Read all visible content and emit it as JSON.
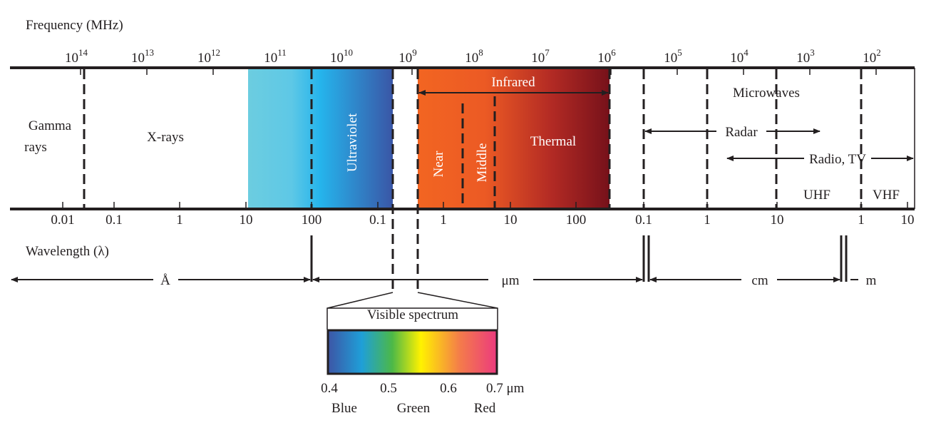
{
  "frequency_label": "Frequency (MHz)",
  "frequency_ticks": [
    {
      "base": "10",
      "exponent": "14"
    },
    {
      "base": "10",
      "exponent": "13"
    },
    {
      "base": "10",
      "exponent": "12"
    },
    {
      "base": "10",
      "exponent": "11"
    },
    {
      "base": "10",
      "exponent": "10"
    },
    {
      "base": "10",
      "exponent": "9"
    },
    {
      "base": "10",
      "exponent": "8"
    },
    {
      "base": "10",
      "exponent": "7"
    },
    {
      "base": "10",
      "exponent": "6"
    },
    {
      "base": "10",
      "exponent": "5"
    },
    {
      "base": "10",
      "exponent": "4"
    },
    {
      "base": "10",
      "exponent": "3"
    },
    {
      "base": "10",
      "exponent": "2"
    }
  ],
  "wavelength_label": "Wavelength (λ)",
  "wavelength_ticks": [
    "0.01",
    "0.1",
    "1",
    "10",
    "100",
    "0.1",
    "1",
    "10",
    "100",
    "0.1",
    "1",
    "10",
    "1",
    "10"
  ],
  "regions": {
    "gamma": [
      "Gamma",
      "rays"
    ],
    "xrays": "X-rays",
    "ultraviolet": "Ultraviolet",
    "infrared": "Infrared",
    "near": "Near",
    "middle": "Middle",
    "thermal": "Thermal",
    "microwaves": "Microwaves",
    "radar": "Radar",
    "radio_tv": "Radio, TV",
    "uhf": "UHF",
    "vhf": "VHF"
  },
  "units": {
    "angstrom": "Å",
    "micrometer": "μm",
    "centimeter": "cm",
    "meter": "m"
  },
  "visible": {
    "title": "Visible spectrum",
    "ticks": [
      "0.4",
      "0.5",
      "0.6",
      "0.7 μm"
    ],
    "colors": [
      "Blue",
      "Green",
      "Red"
    ]
  }
}
